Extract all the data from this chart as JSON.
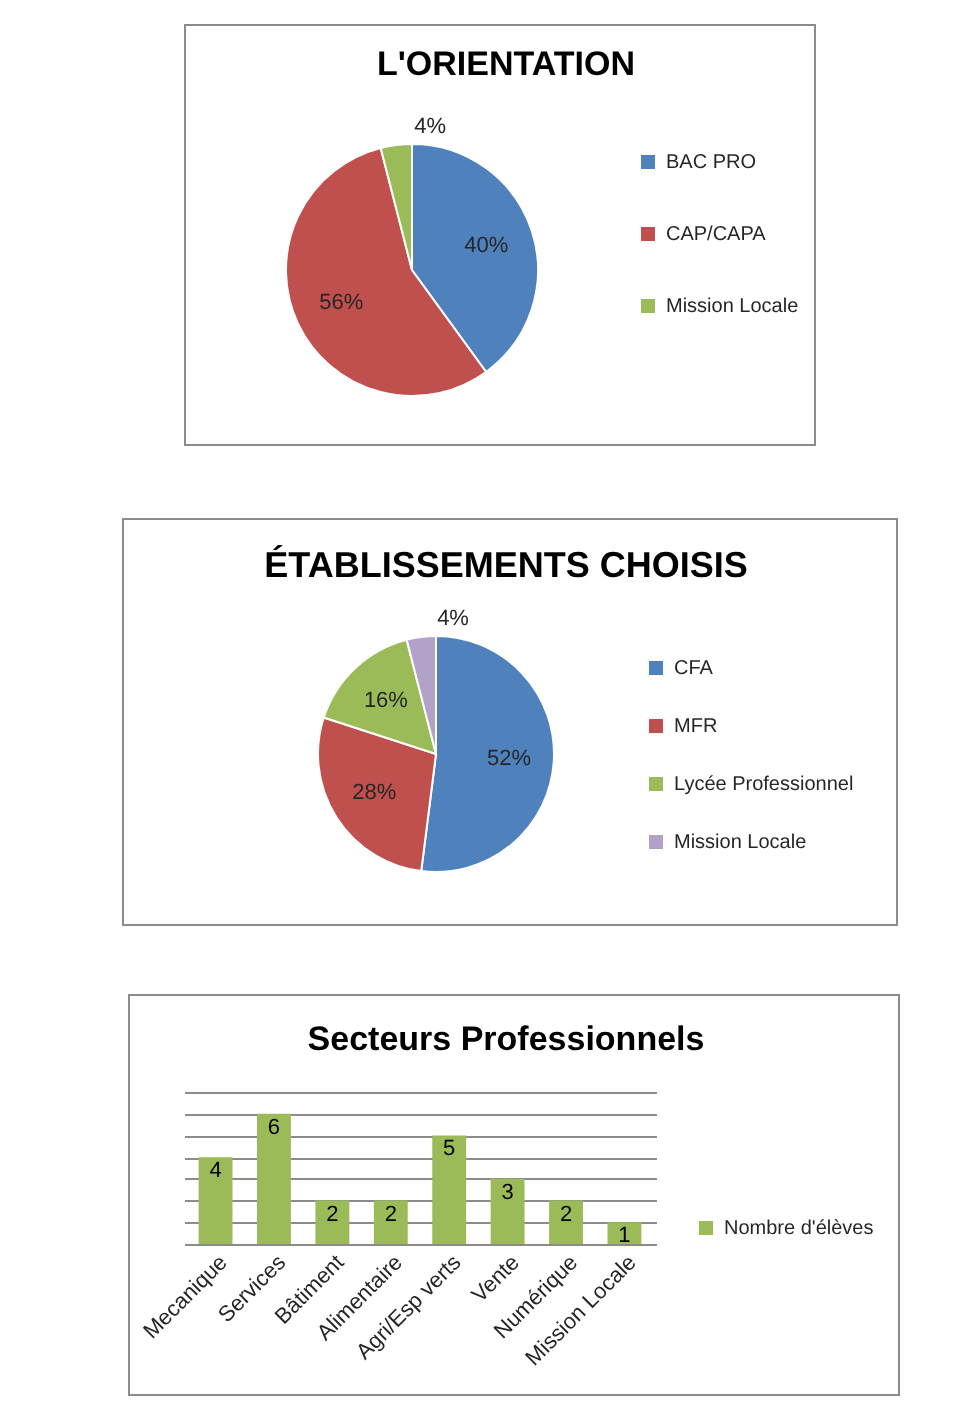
{
  "chart_data": [
    {
      "type": "pie",
      "title": "L'ORIENTATION",
      "categories": [
        "BAC PRO",
        "CAP/CAPA",
        "Mission Locale"
      ],
      "values": [
        40,
        56,
        4
      ],
      "colors": [
        "#4f81bd",
        "#c0504d",
        "#9bbb59"
      ],
      "value_labels": [
        "40%",
        "56%",
        "4%"
      ],
      "legend": "right"
    },
    {
      "type": "pie",
      "title": "ÉTABLISSEMENTS CHOISIS",
      "categories": [
        "CFA",
        "MFR",
        "Lycée Professionnel",
        "Mission Locale"
      ],
      "values": [
        52,
        28,
        16,
        4
      ],
      "colors": [
        "#4f81bd",
        "#c0504d",
        "#9bbb59",
        "#b3a2c7"
      ],
      "value_labels": [
        "52%",
        "28%",
        "16%",
        "4%"
      ],
      "legend": "right"
    },
    {
      "type": "bar",
      "title": "Secteurs Professionnels",
      "categories": [
        "Mecanique",
        "Services",
        "Bâtiment",
        "Alimentaire",
        "Agri/Esp verts",
        "Vente",
        "Numérique",
        "Mission Locale"
      ],
      "series": [
        {
          "name": "Nombre d'élèves",
          "color": "#9bbb59",
          "values": [
            4,
            6,
            2,
            2,
            5,
            3,
            2,
            1
          ]
        }
      ],
      "ylim": [
        0,
        7
      ],
      "yticks": [
        {
          "value": 0,
          "label": null
        },
        {
          "value": 1,
          "label": null
        },
        {
          "value": 2,
          "label": null
        },
        {
          "value": 3,
          "label": null
        },
        {
          "value": 4,
          "label": null
        },
        {
          "value": 5,
          "label": null
        },
        {
          "value": 6,
          "label": null
        },
        {
          "value": 7,
          "label": null
        }
      ],
      "grid": "y",
      "data_labels": true,
      "legend": "right",
      "tick_labels": "x"
    }
  ]
}
